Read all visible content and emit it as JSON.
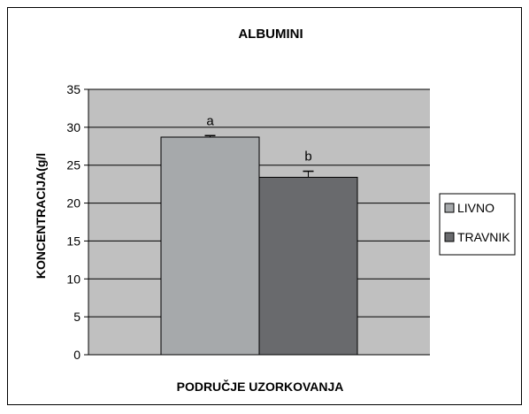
{
  "chart_data": {
    "type": "bar",
    "title": "ALBUMINI",
    "xlabel": "PODRUČJE UZORKOVANJA",
    "ylabel": "KONCENTRACIJA(g/l",
    "ylim": [
      0,
      35
    ],
    "yticks": [
      0,
      5,
      10,
      15,
      20,
      25,
      30,
      35
    ],
    "grid": true,
    "legend_position": "right",
    "series": [
      {
        "name": "LIVNO",
        "values": [
          28.7
        ],
        "error": [
          0.2
        ],
        "label": "a",
        "color": "#a6a9ab"
      },
      {
        "name": "TRAVNIK",
        "values": [
          23.4
        ],
        "error": [
          0.8
        ],
        "label": "b",
        "color": "#696a6d"
      }
    ],
    "plot_background": "#c0c0c0"
  }
}
